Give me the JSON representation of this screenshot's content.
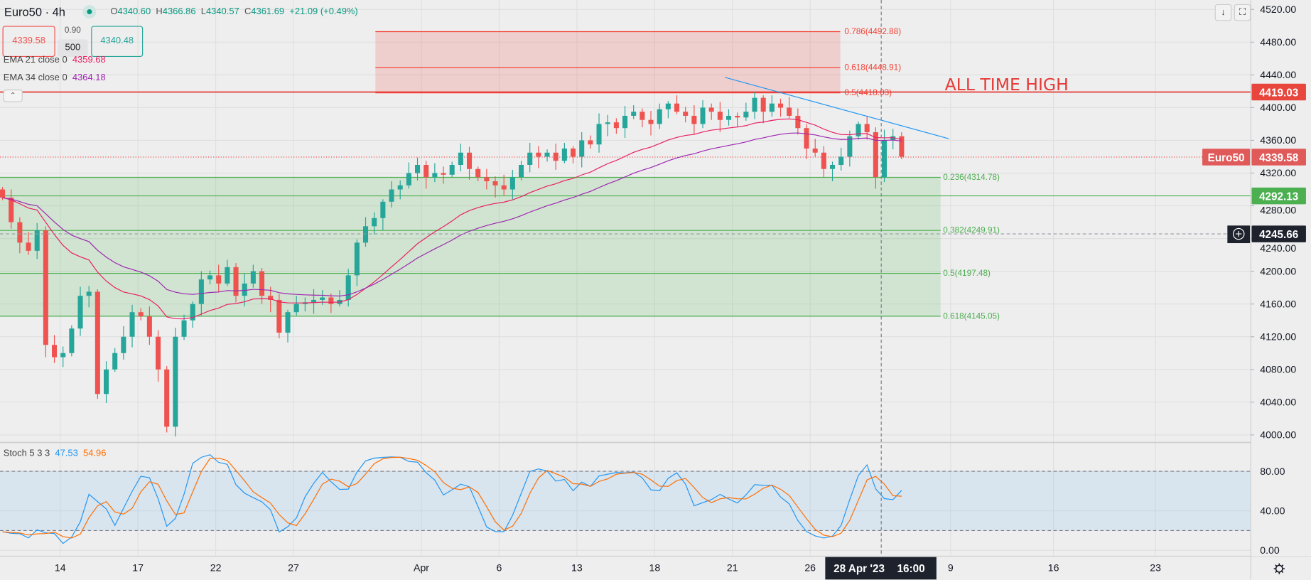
{
  "header": {
    "symbol": "Euro50 · 4h",
    "ohlc": {
      "o_label": "O",
      "o": "4340.60",
      "h_label": "H",
      "h": "4366.86",
      "l_label": "L",
      "l": "4340.57",
      "c_label": "C",
      "c": "4361.69",
      "change": "+21.09 (+0.49%)"
    },
    "sell_price": "4339.58",
    "spread": "0.90",
    "lots": "500",
    "buy_price": "4340.48",
    "ema21": {
      "label": "EMA 21 close 0",
      "value": "4359.68",
      "color": "#e91e63"
    },
    "ema34": {
      "label": "EMA 34 close 0",
      "value": "4364.18",
      "color": "#9c27b0"
    },
    "collapse_glyph": "⌃",
    "scroll_glyph": "↓",
    "fullscreen_glyph": "⛶"
  },
  "stoch": {
    "label": "Stoch 5 3 3",
    "k": "47.53",
    "d": "54.96",
    "k_color": "#2196f3",
    "d_color": "#ff6d00"
  },
  "annotations": {
    "ath_text": "ALL TIME HIGH",
    "fib_upper": [
      {
        "label": "0.786(4492.88)",
        "price": 4492.88
      },
      {
        "label": "0.618(4448.91)",
        "price": 4448.91
      },
      {
        "label": "0.5(4418.03)",
        "price": 4418.03
      }
    ],
    "fib_lower": [
      {
        "label": "0.236(4314.78)",
        "price": 4314.78
      },
      {
        "label": "0.382(4249.91)",
        "price": 4249.91
      },
      {
        "label": "0.5(4197.48)",
        "price": 4197.48
      },
      {
        "label": "0.618(4145.05)",
        "price": 4145.05
      }
    ],
    "support_price": 4292.13,
    "ath_price": 4419.03,
    "trendline": {
      "from": [
        21.5,
        4437
      ],
      "to": [
        30.3,
        4362
      ]
    }
  },
  "axis_badges": {
    "ath": "4419.03",
    "symbol": "Euro50",
    "last": "4339.58",
    "support": "4292.13",
    "crosshair": "4245.66",
    "crosshair_time": "28 Apr '23",
    "crosshair_hour": "16:00"
  },
  "colors": {
    "up": "#26a69a",
    "down": "#ef5350",
    "ath": "#e53935",
    "fib_red": "#f44336",
    "fib_green": "#4caf50"
  },
  "chart_data": {
    "type": "candlestick",
    "symbol": "Euro50",
    "timeframe": "4h",
    "price_ticks": [
      "4520.00",
      "4480.00",
      "4440.00",
      "4400.00",
      "4360.00",
      "4320.00",
      "4280.00",
      "4240.00",
      "4200.00",
      "4160.00",
      "4120.00",
      "4080.00",
      "4040.00",
      "4000.00"
    ],
    "ylim": [
      4000,
      4520
    ],
    "stoch_ticks": [
      "80.00",
      "40.00",
      "0.00"
    ],
    "time_ticks": [
      "14",
      "17",
      "22",
      "27",
      "Apr",
      "6",
      "13",
      "18",
      "21",
      "26",
      "9",
      "16",
      "23"
    ],
    "closes": [
      4290,
      4260,
      4235,
      4225,
      4250,
      4110,
      4095,
      4100,
      4130,
      4170,
      4175,
      4050,
      4080,
      4100,
      4120,
      4150,
      4145,
      4120,
      4080,
      4010,
      4120,
      4140,
      4160,
      4190,
      4195,
      4185,
      4205,
      4170,
      4185,
      4200,
      4170,
      4165,
      4125,
      4150,
      4160,
      4162,
      4165,
      4168,
      4160,
      4165,
      4195,
      4235,
      4255,
      4265,
      4285,
      4300,
      4305,
      4320,
      4330,
      4315,
      4320,
      4318,
      4330,
      4345,
      4325,
      4315,
      4310,
      4305,
      4300,
      4315,
      4330,
      4345,
      4340,
      4345,
      4335,
      4350,
      4340,
      4360,
      4355,
      4380,
      4382,
      4375,
      4390,
      4395,
      4385,
      4380,
      4398,
      4405,
      4395,
      4390,
      4380,
      4400,
      4395,
      4385,
      4390,
      4388,
      4395,
      4412,
      4395,
      4405,
      4400,
      4390,
      4375,
      4350,
      4345,
      4325,
      4330,
      4340,
      4365,
      4380,
      4370,
      4315,
      4360,
      4365,
      4340
    ],
    "first_open": 4300
  }
}
